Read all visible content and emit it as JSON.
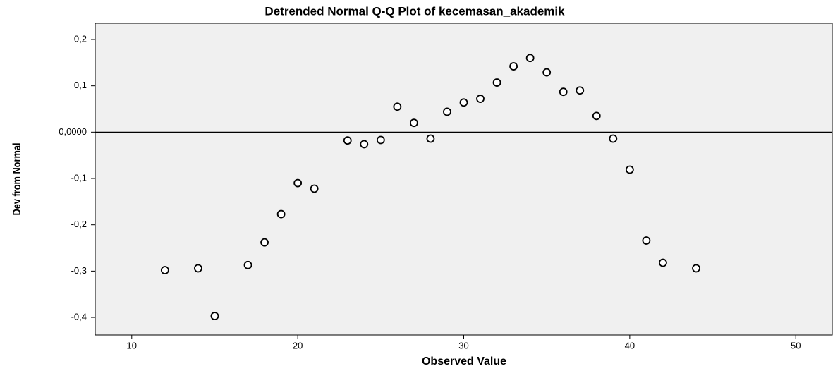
{
  "chart_data": {
    "type": "scatter",
    "title": "Detrended Normal Q-Q Plot of kecemasan_akademik",
    "x_label": "Observed Value",
    "y_label": "Dev from Normal",
    "x": [
      12,
      14,
      15,
      17,
      18,
      19,
      20,
      21,
      23,
      24,
      25,
      26,
      27,
      28,
      29,
      30,
      31,
      32,
      33,
      34,
      35,
      36,
      37,
      38,
      39,
      40,
      41,
      42,
      44
    ],
    "values": [
      -0.298,
      -0.294,
      -0.397,
      -0.287,
      -0.238,
      -0.177,
      -0.11,
      -0.122,
      -0.018,
      -0.026,
      -0.017,
      0.055,
      0.02,
      -0.014,
      0.044,
      0.064,
      0.072,
      0.107,
      0.142,
      0.16,
      0.129,
      0.087,
      0.09,
      0.035,
      -0.014,
      -0.081,
      -0.234,
      -0.282,
      -0.294
    ],
    "color": "#000000",
    "reference_line": 0,
    "xlim": [
      7.8,
      52.2
    ],
    "ylim": [
      -0.438,
      0.235
    ],
    "xticks": [
      10,
      20,
      30,
      40,
      50
    ],
    "yticks": [
      {
        "value": 0.2,
        "label": "0,2"
      },
      {
        "value": 0.1,
        "label": "0,1"
      },
      {
        "value": 0,
        "label": "0,0000"
      },
      {
        "value": -0.1,
        "label": "-0,1"
      },
      {
        "value": -0.2,
        "label": "-0,2"
      },
      {
        "value": -0.3,
        "label": "-0,3"
      },
      {
        "value": -0.4,
        "label": "-0,4"
      }
    ]
  }
}
